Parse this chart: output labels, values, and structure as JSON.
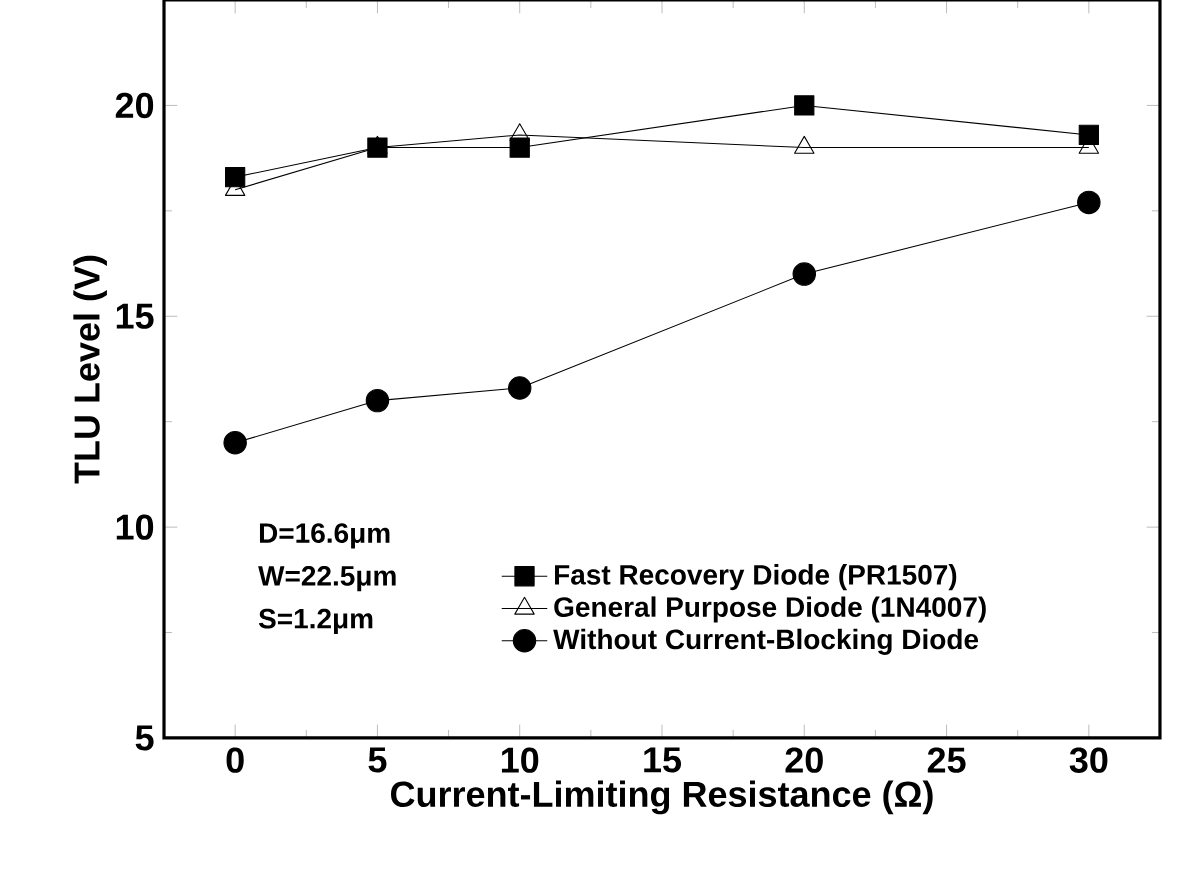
{
  "chart_data": {
    "type": "line",
    "xlabel": "Current-Limiting Resistance (Ω)",
    "ylabel": "TLU Level (V)",
    "x": [
      0,
      5,
      10,
      20,
      30
    ],
    "series": [
      {
        "name": "Fast Recovery Diode (PR1507)",
        "color": "#000000",
        "marker": "square",
        "values": [
          18.3,
          19,
          19,
          20,
          19.3
        ]
      },
      {
        "name": "General Purpose Diode (1N4007)",
        "color": "#000000",
        "marker": "triangle",
        "values": [
          18,
          19,
          19.3,
          19,
          19
        ]
      },
      {
        "name": "Without Current-Blocking Diode",
        "color": "#000000",
        "marker": "circle",
        "values": [
          12,
          13,
          13.3,
          16,
          17.7
        ]
      }
    ],
    "annotations": [
      "D=16.6μm",
      "W=22.5μm",
      "S=1.2μm"
    ],
    "xlim": [
      -2.5,
      32.5
    ],
    "ylim": [
      5,
      22.5
    ],
    "xticks": [
      0,
      5,
      10,
      15,
      20,
      25,
      30
    ],
    "yticks": [
      5,
      10,
      15,
      20
    ],
    "grid": false,
    "legend": "bottom",
    "line_style": "solid"
  }
}
